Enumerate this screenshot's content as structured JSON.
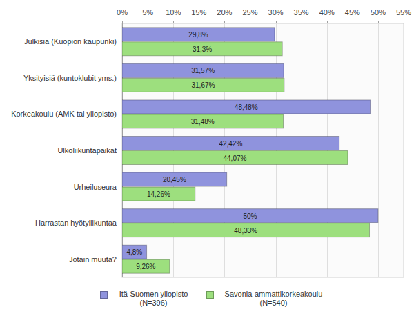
{
  "chart_data": {
    "type": "bar",
    "orientation": "horizontal",
    "categories": [
      "Julkisia (Kuopion kaupunki)",
      "Yksityisiä (kuntoklubit yms.)",
      "Korkeakoulu (AMK tai yliopisto)",
      "Ulkoliikuntapaikat",
      "Urheiluseura",
      "Harrastan hyötyliikuntaa",
      "Jotain muuta?"
    ],
    "series": [
      {
        "name": "Itä-Suomen yliopisto (N=396)",
        "color": "#8f93dd",
        "values": [
          29.8,
          31.57,
          48.48,
          42.42,
          20.45,
          50,
          4.8
        ],
        "value_labels": [
          "29,8%",
          "31,57%",
          "48,48%",
          "42,42%",
          "20,45%",
          "50%",
          "4,8%"
        ]
      },
      {
        "name": "Savonia-ammattikorkeakoulu (N=540)",
        "color": "#9ddf7e",
        "values": [
          31.3,
          31.67,
          31.48,
          44.07,
          14.26,
          48.33,
          9.26
        ],
        "value_labels": [
          "31,3%",
          "31,67%",
          "31,48%",
          "44,07%",
          "14,26%",
          "48,33%",
          "9,26%"
        ]
      }
    ],
    "xlim": [
      0,
      55
    ],
    "xticks": [
      {
        "value": 0,
        "label": "0%"
      },
      {
        "value": 5,
        "label": "5%"
      },
      {
        "value": 10,
        "label": "10%"
      },
      {
        "value": 15,
        "label": "15%"
      },
      {
        "value": 20,
        "label": "20%"
      },
      {
        "value": 25,
        "label": "25%"
      },
      {
        "value": 30,
        "label": "30%"
      },
      {
        "value": 35,
        "label": "35%"
      },
      {
        "value": 40,
        "label": "40%"
      },
      {
        "value": 45,
        "label": "45%"
      },
      {
        "value": 50,
        "label": "50%"
      },
      {
        "value": 55,
        "label": "55%"
      }
    ],
    "grid": true,
    "data_labels": true,
    "legend": "bottom"
  }
}
